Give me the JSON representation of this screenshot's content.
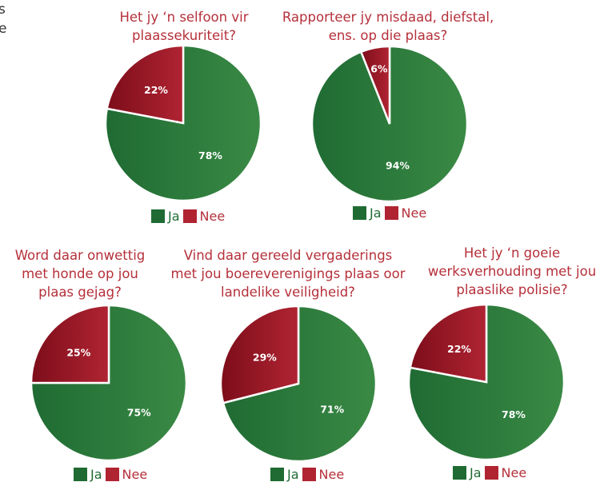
{
  "fragment_lines": [
    "s",
    "e"
  ],
  "colors": {
    "ja": "#3a8a45",
    "ja_dark": "#1f6b33",
    "nee": "#b02432",
    "nee_dark": "#7d0d1a"
  },
  "legend": {
    "ja": "Ja",
    "nee": "Nee"
  },
  "chart_data": [
    {
      "type": "pie",
      "title_lines": [
        "Het jy ‘n selfoon vir",
        "plaassekuriteit?"
      ],
      "categories": [
        "Ja",
        "Nee"
      ],
      "values": [
        78,
        22
      ],
      "labels": [
        "78%",
        "22%"
      ]
    },
    {
      "type": "pie",
      "title_lines": [
        "Rapporteer jy misdaad, diefstal,",
        "ens. op die plaas?"
      ],
      "categories": [
        "Ja",
        "Nee"
      ],
      "values": [
        94,
        6
      ],
      "labels": [
        "94%",
        "6%"
      ]
    },
    {
      "type": "pie",
      "title_lines": [
        "Word daar onwettig",
        "met honde op jou",
        "plaas gejag?"
      ],
      "categories": [
        "Ja",
        "Nee"
      ],
      "values": [
        75,
        25
      ],
      "labels": [
        "75%",
        "25%"
      ]
    },
    {
      "type": "pie",
      "title_lines": [
        "Vind daar gereeld vergaderings",
        "met jou boereverenigings plaas oor",
        "landelike veiligheid?"
      ],
      "categories": [
        "Ja",
        "Nee"
      ],
      "values": [
        71,
        29
      ],
      "labels": [
        "71%",
        "29%"
      ]
    },
    {
      "type": "pie",
      "title_lines": [
        "Het jy ‘n goeie",
        "werksverhouding met jou",
        "plaaslike polisie?"
      ],
      "categories": [
        "Ja",
        "Nee"
      ],
      "values": [
        78,
        22
      ],
      "labels": [
        "78%",
        "22%"
      ]
    }
  ]
}
